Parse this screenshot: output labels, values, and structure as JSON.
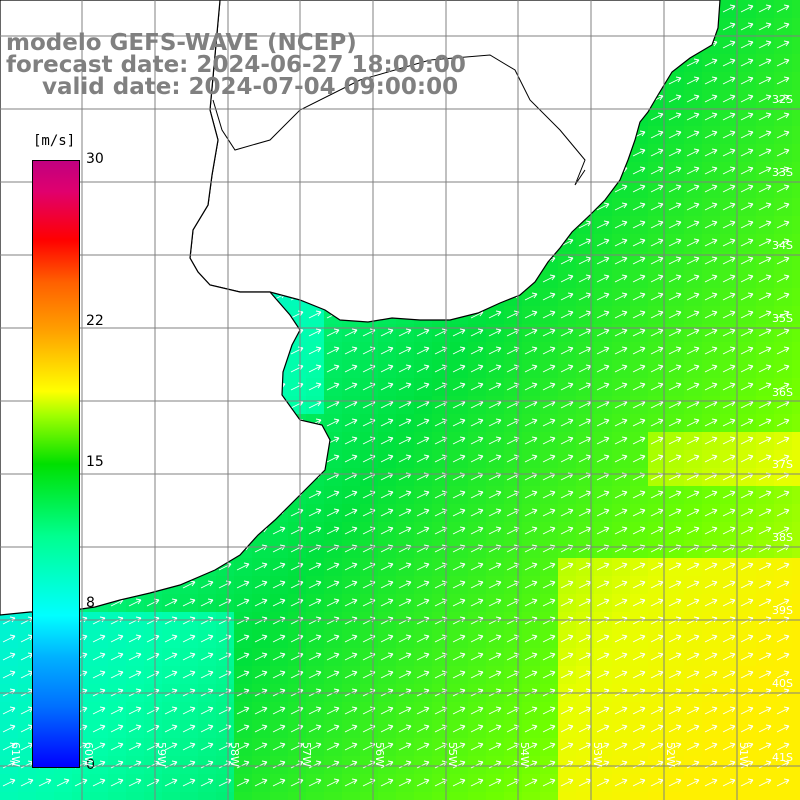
{
  "title": {
    "line1": "modelo GEFS-WAVE (NCEP)",
    "line2": "forecast date: 2024-06-27 18:00:00",
    "line3": "valid date: 2024-07-04 09:00:00"
  },
  "colorbar": {
    "unit": "[m/s]",
    "tick_labels": [
      "30",
      "22",
      "15",
      "8",
      "0"
    ],
    "tick_values": [
      30,
      22,
      15,
      8,
      0
    ],
    "range": [
      0,
      30
    ],
    "colors": [
      "#0000ff",
      "#00ffff",
      "#00e000",
      "#ffff00",
      "#ff0000",
      "#c00080"
    ]
  },
  "map": {
    "variable": "wind speed and direction",
    "latitude_labels": [
      "32S",
      "33S",
      "34S",
      "35S",
      "36S",
      "37S",
      "38S",
      "39S",
      "40S",
      "41S"
    ],
    "longitude_labels": [
      "61W",
      "60W",
      "59W",
      "58W",
      "57W",
      "56W",
      "55W",
      "54W",
      "53W",
      "52W",
      "51W"
    ],
    "land_color": "#ffffff",
    "grid_color": "#808080",
    "arrow_color": "#ffffff",
    "wind_direction": "toward north-east"
  }
}
